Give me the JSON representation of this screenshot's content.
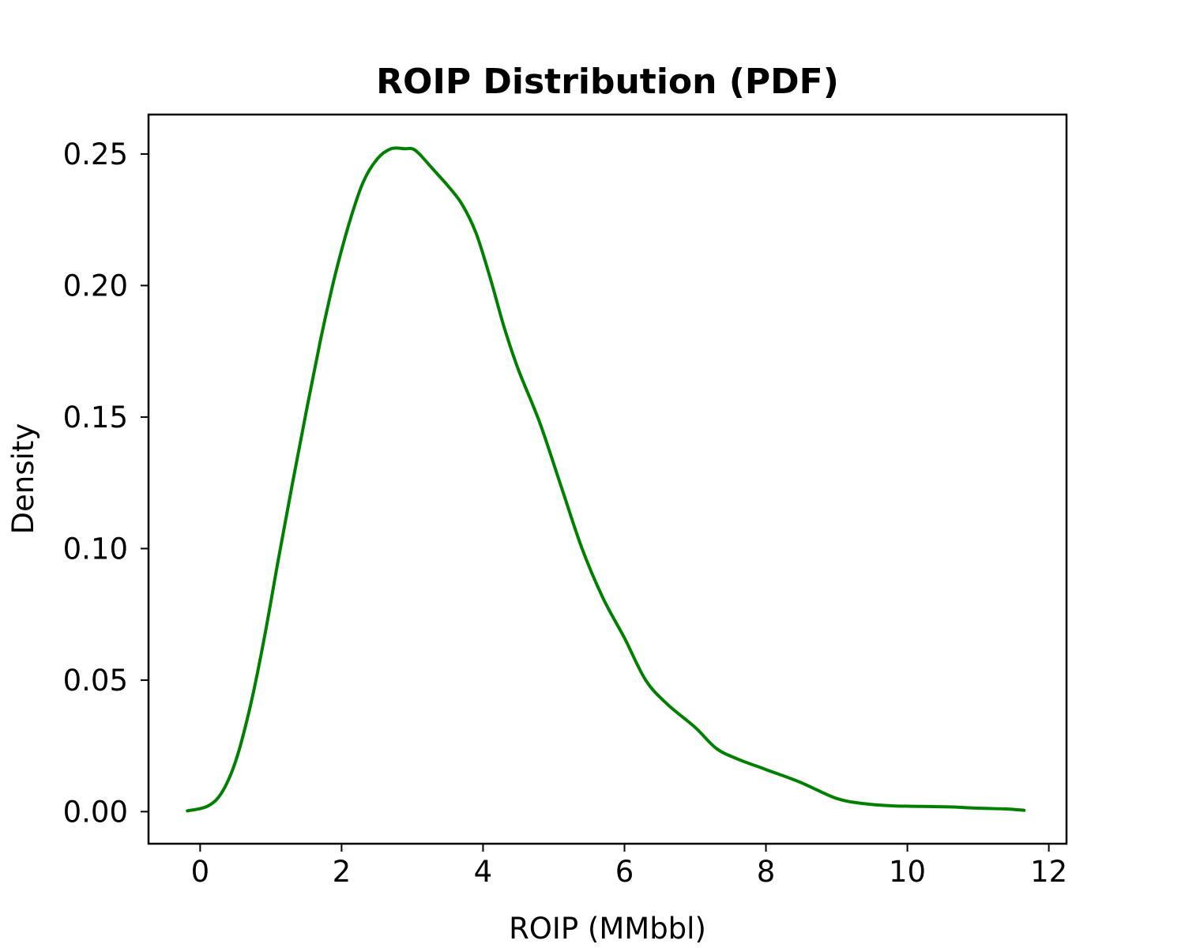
{
  "chart_data": {
    "type": "line",
    "title": "ROIP Distribution (PDF)",
    "xlabel": "ROIP (MMbbl)",
    "ylabel": "Density",
    "xlim": [
      -0.73,
      12.25
    ],
    "ylim": [
      -0.0122,
      0.265
    ],
    "x_ticks": [
      0,
      2,
      4,
      6,
      8,
      10,
      12
    ],
    "x_tick_labels": [
      "0",
      "2",
      "4",
      "6",
      "8",
      "10",
      "12"
    ],
    "y_ticks": [
      0.0,
      0.05,
      0.1,
      0.15,
      0.2,
      0.25
    ],
    "y_tick_labels": [
      "0.00",
      "0.05",
      "0.10",
      "0.15",
      "0.20",
      "0.25"
    ],
    "grid": false,
    "legend": "none",
    "series": [
      {
        "color": "#008000",
        "x": [
          -0.18,
          0.1,
          0.3,
          0.5,
          0.7,
          0.9,
          1.1,
          1.3,
          1.5,
          1.7,
          1.9,
          2.1,
          2.3,
          2.5,
          2.7,
          2.9,
          3.0,
          3.1,
          3.3,
          3.5,
          3.7,
          3.9,
          4.1,
          4.3,
          4.5,
          4.8,
          5.1,
          5.4,
          5.7,
          6.0,
          6.3,
          6.6,
          7.0,
          7.3,
          7.6,
          8.0,
          8.5,
          9.0,
          9.4,
          9.8,
          10.2,
          10.6,
          11.0,
          11.4,
          11.65
        ],
        "y": [
          0.0003,
          0.002,
          0.007,
          0.019,
          0.039,
          0.065,
          0.095,
          0.124,
          0.152,
          0.179,
          0.203,
          0.223,
          0.239,
          0.248,
          0.252,
          0.252,
          0.252,
          0.25,
          0.244,
          0.238,
          0.231,
          0.22,
          0.203,
          0.184,
          0.168,
          0.148,
          0.124,
          0.1,
          0.081,
          0.066,
          0.05,
          0.041,
          0.032,
          0.024,
          0.02,
          0.016,
          0.011,
          0.005,
          0.003,
          0.0022,
          0.002,
          0.0018,
          0.0013,
          0.001,
          0.0005
        ]
      }
    ]
  }
}
